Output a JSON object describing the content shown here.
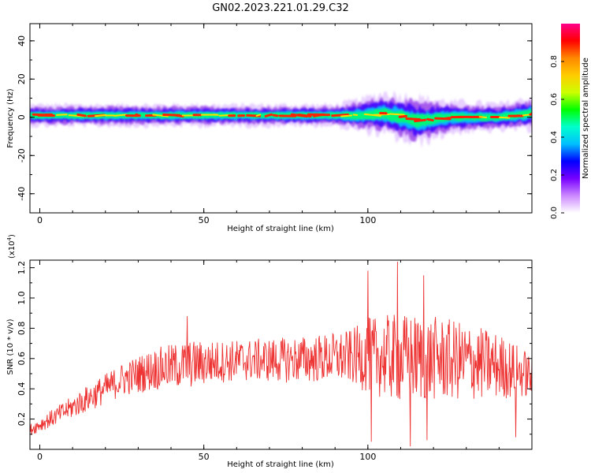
{
  "title": "GN02.2023.221.01.29.C32",
  "chart_data": [
    {
      "type": "heatmap",
      "xlabel": "Height of straight line (km)",
      "ylabel": "Frequency (Hz)",
      "xlim": [
        -3,
        150
      ],
      "ylim": [
        -50,
        49
      ],
      "x_ticks": [
        0,
        50,
        100
      ],
      "y_ticks": [
        -40,
        -20,
        0,
        20,
        40
      ],
      "colorbar": {
        "label": "Normalized spectral amplitude",
        "range": [
          0,
          1
        ],
        "ticks": [
          "0.0",
          "0.2",
          "0.4",
          "0.6",
          "0.8"
        ],
        "colors": [
          "#ffffff",
          "#cc88ff",
          "#7700ff",
          "#0000ff",
          "#00bfff",
          "#00ffcc",
          "#00ff00",
          "#ccff00",
          "#ffcc00",
          "#ff8800",
          "#ff0000",
          "#ff0088"
        ]
      },
      "band": [
        {
          "x": -3,
          "center": 1,
          "halfwidth": 4
        },
        {
          "x": 20,
          "center": 1,
          "halfwidth": 4
        },
        {
          "x": 50,
          "center": 1,
          "halfwidth": 4
        },
        {
          "x": 90,
          "center": 1,
          "halfwidth": 4
        },
        {
          "x": 98,
          "center": 1,
          "halfwidth": 6
        },
        {
          "x": 105,
          "center": 2,
          "halfwidth": 8
        },
        {
          "x": 115,
          "center": -2,
          "halfwidth": 9
        },
        {
          "x": 125,
          "center": 0,
          "halfwidth": 6
        },
        {
          "x": 140,
          "center": 0,
          "halfwidth": 5
        },
        {
          "x": 150,
          "center": 2,
          "halfwidth": 6
        }
      ]
    },
    {
      "type": "line",
      "xlabel": "Height of straight line (km)",
      "ylabel": "SNR (10 * v/v)",
      "y_multiplier": "(x10",
      "y_multiplier_exp": "4",
      "y_multiplier_close": ")",
      "xlim": [
        -3,
        150
      ],
      "ylim": [
        0,
        1.25
      ],
      "x_ticks": [
        0,
        50,
        100
      ],
      "y_ticks": [
        "0.2",
        "0.4",
        "0.6",
        "0.8",
        "1.0",
        "1.2"
      ],
      "color": "#ee3333",
      "envelope": {
        "x": [
          -3,
          5,
          15,
          25,
          35,
          45,
          55,
          65,
          75,
          85,
          95,
          100,
          110,
          120,
          130,
          140,
          148,
          150
        ],
        "y": [
          0.13,
          0.22,
          0.34,
          0.46,
          0.53,
          0.56,
          0.58,
          0.59,
          0.59,
          0.6,
          0.61,
          0.62,
          0.6,
          0.6,
          0.58,
          0.55,
          0.5,
          0.48
        ],
        "amp": [
          0.04,
          0.06,
          0.09,
          0.11,
          0.14,
          0.16,
          0.14,
          0.14,
          0.15,
          0.16,
          0.18,
          0.25,
          0.3,
          0.28,
          0.26,
          0.22,
          0.16,
          0.14
        ]
      },
      "peaks": [
        {
          "x": 45,
          "y": 0.88
        },
        {
          "x": 100,
          "y": 1.18
        },
        {
          "x": 109,
          "y": 1.24
        },
        {
          "x": 117,
          "y": 1.15
        },
        {
          "x": 101,
          "y": 0.05
        },
        {
          "x": 113,
          "y": 0.02
        },
        {
          "x": 118,
          "y": 0.06
        },
        {
          "x": 145,
          "y": 0.08
        }
      ]
    }
  ]
}
